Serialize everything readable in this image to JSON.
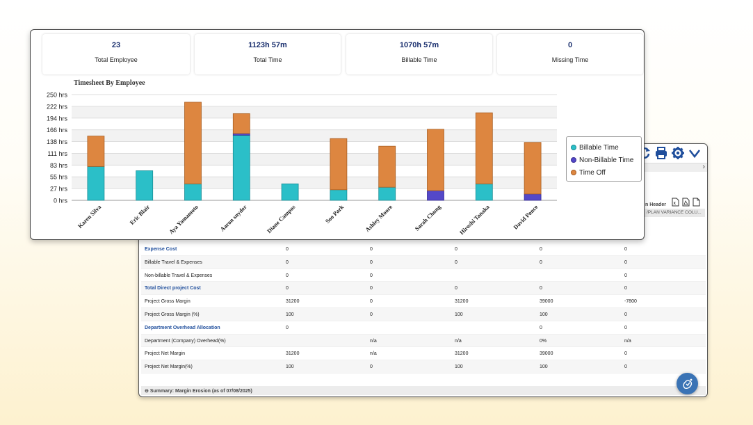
{
  "colors": {
    "billable": "#2bbfc8",
    "non_billable": "#5448c8",
    "time_off": "#dd8640",
    "navy": "#1a2f6e"
  },
  "kpis": [
    {
      "value": "23",
      "label": "Total Employee"
    },
    {
      "value": "1123h 57m",
      "label": "Total Time"
    },
    {
      "value": "1070h 57m",
      "label": "Billable Time"
    },
    {
      "value": "0",
      "label": "Missing Time"
    }
  ],
  "chart_data": {
    "type": "bar",
    "stacked": true,
    "title": "Timesheet By Employee",
    "categories": [
      "Karen Silva",
      "Eric Blair",
      "Aya Yamamoto",
      "Aaron snyder",
      "Diane Campos",
      "Soo Park",
      "Ashley Moore",
      "Sarah Chung",
      "Hiroshi Tanaka",
      "David Ponce"
    ],
    "series": [
      {
        "name": "Billable Time",
        "values": [
          80,
          70,
          39,
          154,
          39,
          25,
          31,
          0,
          39,
          0
        ]
      },
      {
        "name": "Non-Billable Time",
        "values": [
          0,
          0,
          0,
          4,
          0,
          0,
          0,
          23,
          0,
          15
        ]
      },
      {
        "name": "Time Off",
        "values": [
          72,
          0,
          193,
          47,
          0,
          121,
          97,
          145,
          168,
          122
        ]
      }
    ],
    "yticks": [
      "250 hrs",
      "222 hrs",
      "194 hrs",
      "166 hrs",
      "138 hrs",
      "111 hrs",
      "83 hrs",
      "55 hrs",
      "27 hrs",
      "0 hrs"
    ],
    "ylim": [
      0,
      250
    ],
    "legend_position": "right"
  },
  "back_panel": {
    "header_label": "n Header",
    "column_header": "/PLAN VARIANCE COLU...",
    "summary": "Summary: Margin Erosion (as of 07/08/2025)",
    "rows": [
      {
        "label": "Expense Cost",
        "section": true,
        "cells": [
          "0",
          "0",
          "0",
          "0",
          "0"
        ]
      },
      {
        "label": "Billable Travel & Expenses",
        "section": false,
        "cells": [
          "0",
          "0",
          "0",
          "0",
          "0"
        ]
      },
      {
        "label": "Non-billable Travel & Expenses",
        "section": false,
        "cells": [
          "0",
          "0",
          "",
          "",
          "0"
        ]
      },
      {
        "label": "Total Direct project Cost",
        "section": true,
        "cells": [
          "0",
          "0",
          "0",
          "0",
          "0"
        ]
      },
      {
        "label": "Project Gross Margin",
        "section": false,
        "cells": [
          "31200",
          "0",
          "31200",
          "39000",
          "-7800"
        ]
      },
      {
        "label": "Project Gross Margin (%)",
        "section": false,
        "cells": [
          "100",
          "0",
          "100",
          "100",
          "0"
        ]
      },
      {
        "label": "Department Overhead Allocation",
        "section": true,
        "cells": [
          "0",
          "",
          "",
          "0",
          "0"
        ]
      },
      {
        "label": "Department (Company) Overhead(%)",
        "section": false,
        "cells": [
          "",
          "n/a",
          "n/a",
          "0%",
          "n/a"
        ]
      },
      {
        "label": "Project Net Margin",
        "section": false,
        "cells": [
          "31200",
          "n/a",
          "31200",
          "39000",
          "0"
        ]
      },
      {
        "label": "Project Net Margin(%)",
        "section": false,
        "cells": [
          "100",
          "0",
          "100",
          "100",
          "0"
        ]
      }
    ]
  },
  "icons": [
    "refresh-icon",
    "print-icon",
    "gear-icon",
    "chevron-down-icon",
    "xls-export-icon",
    "pdf-export-icon",
    "doc-export-icon",
    "assistant-icon"
  ]
}
